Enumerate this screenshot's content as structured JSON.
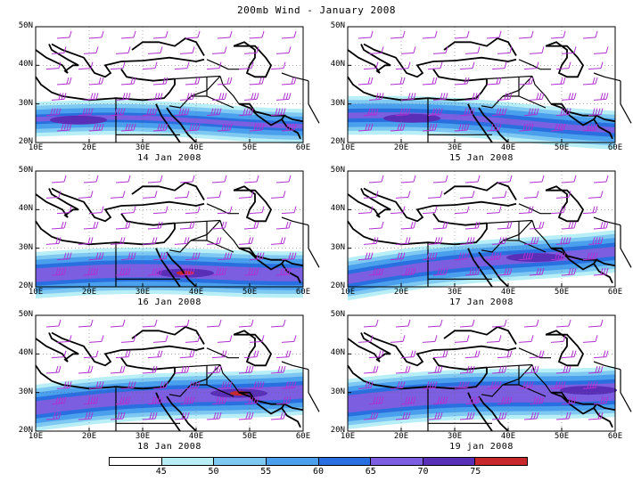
{
  "title": "200mb  Wind - January 2008",
  "axes": {
    "lat_labels": [
      "50N",
      "40N",
      "30N",
      "20N"
    ],
    "lon_labels": [
      "10E",
      "20E",
      "30E",
      "40E",
      "50E",
      "60E"
    ],
    "lat_range": [
      20,
      50
    ],
    "lon_range": [
      10,
      60
    ]
  },
  "panels": [
    {
      "date": "14 Jan 2008",
      "jet_lat_start": 26,
      "jet_lat_end": 25,
      "core_lon": 18,
      "core_strength": 3,
      "width": 5
    },
    {
      "date": "15 Jan 2008",
      "jet_lat_start": 27,
      "jet_lat_end": 24,
      "core_lon": 22,
      "core_strength": 3,
      "width": 6
    },
    {
      "date": "16 Jan 2008",
      "jet_lat_start": 23,
      "jet_lat_end": 24,
      "core_lon": 38,
      "core_strength": 4,
      "width": 8
    },
    {
      "date": "17 Jan 2008",
      "jet_lat_start": 22,
      "jet_lat_end": 30,
      "core_lon": 45,
      "core_strength": 3,
      "width": 7
    },
    {
      "date": "18 Jan 2008",
      "jet_lat_start": 26,
      "jet_lat_end": 31,
      "core_lon": 48,
      "core_strength": 4,
      "width": 8
    },
    {
      "date": "19 jan 2008",
      "jet_lat_start": 27,
      "jet_lat_end": 31,
      "core_lon": 55,
      "core_strength": 3,
      "width": 9
    }
  ],
  "colorbar": {
    "labels": [
      "45",
      "50",
      "55",
      "60",
      "65",
      "70",
      "75"
    ],
    "colors": [
      "#ffffff",
      "#b8eef6",
      "#7ec8f2",
      "#4aa0ec",
      "#2a6fe0",
      "#7b5fe0",
      "#5a2fb8",
      "#c8282a"
    ]
  },
  "colors": {
    "barb": "#b030d0",
    "coast": "#000000",
    "background": "#ffffff"
  }
}
